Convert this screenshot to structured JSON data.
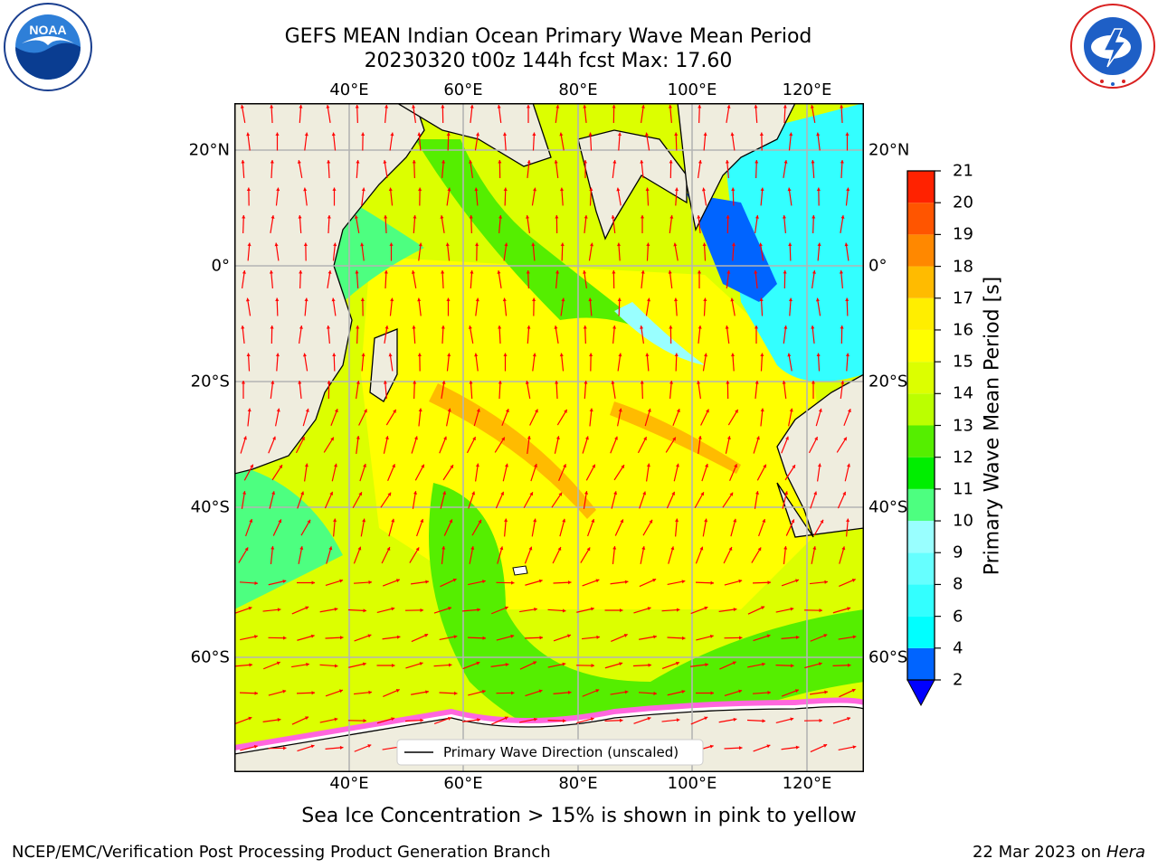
{
  "title_line1": "GEFS MEAN Indian Ocean Primary Wave Mean Period",
  "title_line2": "20230320 t00z 144h fcst   Max: 17.60",
  "longitude_ticks": [
    "40°E",
    "60°E",
    "80°E",
    "100°E",
    "120°E"
  ],
  "latitude_ticks": [
    "20°N",
    "0°",
    "20°S",
    "40°S",
    "60°S"
  ],
  "colorbar": {
    "label": "Primary Wave Mean Period [s]",
    "ticks": [
      "2",
      "4",
      "6",
      "8",
      "9",
      "10",
      "11",
      "12",
      "13",
      "14",
      "15",
      "16",
      "17",
      "18",
      "19",
      "20",
      "21"
    ],
    "colors": [
      "#0064ff",
      "#00ffff",
      "#33ffff",
      "#66ffff",
      "#99ffff",
      "#4dff80",
      "#00ee00",
      "#55ee00",
      "#bbff00",
      "#dcff00",
      "#ffff00",
      "#ffee00",
      "#ffbb00",
      "#ff8800",
      "#ff5500",
      "#ff2200"
    ]
  },
  "legend_label": "Primary Wave Direction (unscaled)",
  "sea_ice_note": "Sea Ice Concentration > 15% is shown in pink to yellow",
  "footer_left": "NCEP/EMC/Verification Post Processing Product Generation Branch",
  "footer_right_prefix": "22 Mar 2023 on",
  "footer_right_host": "Hera",
  "logos": {
    "noaa_text": "NOAA",
    "noaa_ring": "NATIONAL OCEANIC AND ATMOSPHERIC ADMINISTRATION · U.S. DEPARTMENT OF COMMERCE",
    "nws_ring": "NATIONAL WEATHER SERVICE"
  },
  "map_colors": {
    "land": "#efedde",
    "arrow": "#ff0000",
    "grid": "#b4b4b4",
    "sea_ice": "#ff66dd"
  }
}
